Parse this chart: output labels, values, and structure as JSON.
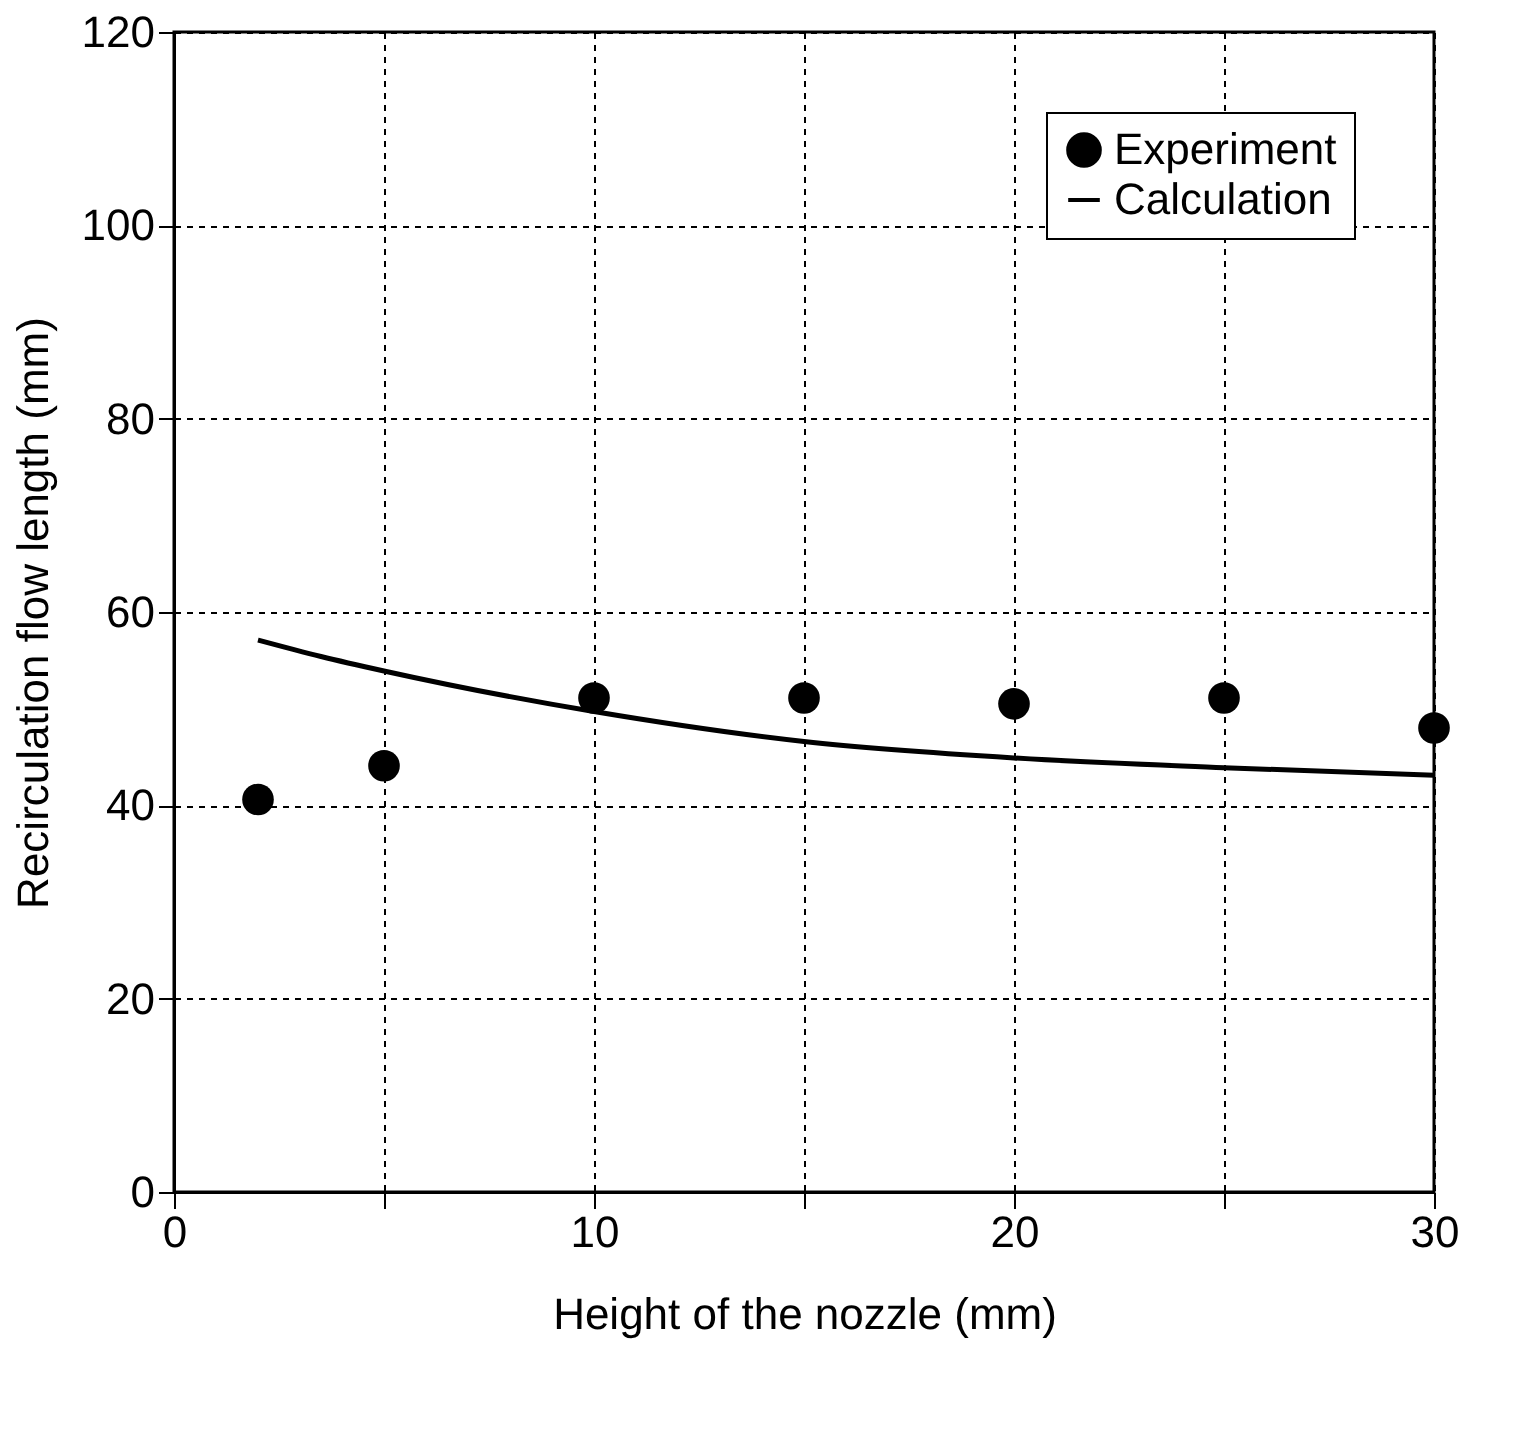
{
  "chart_data": {
    "type": "scatter",
    "xlabel": "Height of the nozzle (mm)",
    "ylabel": "Recirculation flow length (mm)",
    "xlim": [
      0,
      30
    ],
    "xticks": [
      0,
      {
        "value": 5,
        "label": null
      },
      10,
      {
        "value": 15,
        "label": null
      },
      20,
      {
        "value": 25,
        "label": null
      },
      30
    ],
    "ylim": [
      0,
      120
    ],
    "yticks": [
      0,
      20,
      40,
      60,
      80,
      100,
      120
    ],
    "grid": true,
    "legend": "top right",
    "series": [
      {
        "name": "Experiment",
        "marker": "circle",
        "color": "#000000",
        "x": [
          2,
          5,
          10,
          15,
          20,
          25,
          30
        ],
        "values": [
          40.6,
          44.1,
          51.1,
          51.1,
          50.5,
          51.1,
          48.0
        ]
      },
      {
        "name": "Calculation",
        "type": "line",
        "line_style": "solid",
        "color": "#000000",
        "x": [
          2,
          3.5,
          5,
          10,
          15,
          20,
          25,
          30
        ],
        "values": [
          57.1,
          55.4,
          53.9,
          49.7,
          46.6,
          44.9,
          43.9,
          43.1
        ]
      }
    ]
  }
}
